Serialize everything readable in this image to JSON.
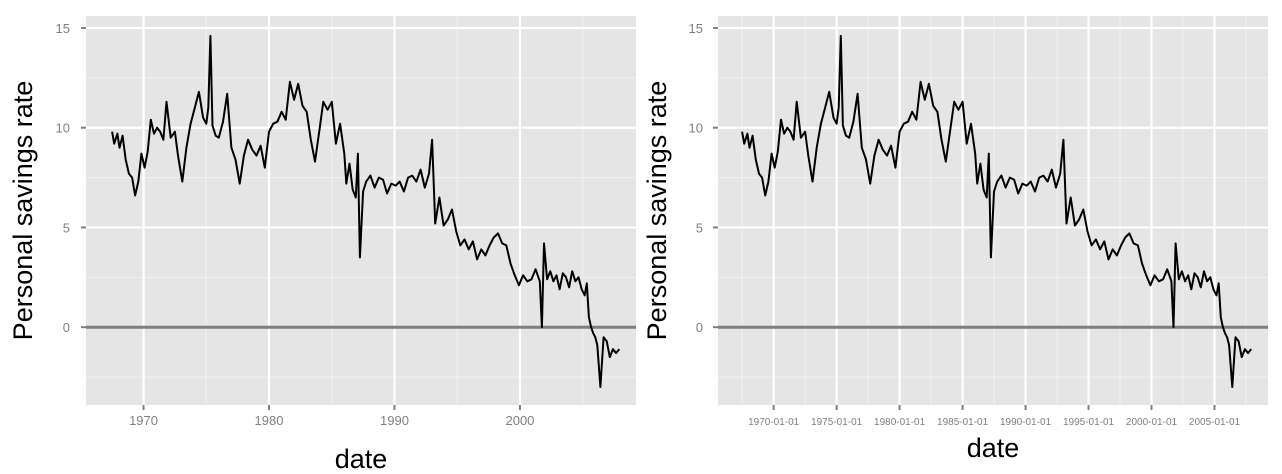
{
  "chart_data": [
    {
      "type": "line",
      "xlabel": "date",
      "ylabel": "Personal savings rate",
      "ylim": [
        -3.9,
        15.6
      ],
      "xlim": [
        "1965-06-01",
        "2009-04-01"
      ],
      "grid": true,
      "reference_line": {
        "y": 0
      },
      "y_ticks": [
        0,
        5,
        10,
        15
      ],
      "y_tick_labels": [
        "0",
        "5",
        "10",
        "15"
      ],
      "x_ticks": [
        "1970-01-01",
        "1980-01-01",
        "1990-01-01",
        "2000-01-01"
      ],
      "x_tick_labels": [
        "1970",
        "1980",
        "1990",
        "2000"
      ],
      "series": [
        {
          "x": [
            "1967-07-01",
            "1967-09-01",
            "1967-12-01",
            "1968-02-01",
            "1968-05-01",
            "1968-08-01",
            "1968-11-01",
            "1969-02-01",
            "1969-05-01",
            "1969-08-01",
            "1969-11-01",
            "1970-02-01",
            "1970-05-01",
            "1970-08-01",
            "1970-11-01",
            "1971-02-01",
            "1971-05-01",
            "1971-08-01",
            "1971-11-01",
            "1972-03-01",
            "1972-07-01",
            "1972-10-01",
            "1973-02-01",
            "1973-06-01",
            "1973-10-01",
            "1974-02-01",
            "1974-06-01",
            "1974-10-01",
            "1975-01-01",
            "1975-03-01",
            "1975-05-01",
            "1975-07-01",
            "1975-10-01",
            "1976-01-01",
            "1976-05-01",
            "1976-09-01",
            "1977-01-01",
            "1977-05-01",
            "1977-09-01",
            "1978-01-01",
            "1978-05-01",
            "1978-09-01",
            "1979-01-01",
            "1979-05-01",
            "1979-09-01",
            "1980-01-01",
            "1980-05-01",
            "1980-09-01",
            "1981-01-01",
            "1981-05-01",
            "1981-09-01",
            "1982-01-01",
            "1982-05-01",
            "1982-09-01",
            "1983-01-01",
            "1983-05-01",
            "1983-09-01",
            "1984-01-01",
            "1984-05-01",
            "1984-09-01",
            "1985-01-01",
            "1985-05-01",
            "1985-09-01",
            "1986-01-01",
            "1986-03-01",
            "1986-06-01",
            "1986-09-01",
            "1986-12-01",
            "1987-02-01",
            "1987-04-01",
            "1987-07-01",
            "1987-10-01",
            "1988-02-01",
            "1988-06-01",
            "1988-10-01",
            "1989-02-01",
            "1989-06-01",
            "1989-10-01",
            "1990-02-01",
            "1990-06-01",
            "1990-10-01",
            "1991-02-01",
            "1991-06-01",
            "1991-10-01",
            "1992-02-01",
            "1992-06-01",
            "1992-10-01",
            "1993-01-01",
            "1993-04-01",
            "1993-08-01",
            "1993-12-01",
            "1994-04-01",
            "1994-08-01",
            "1994-12-01",
            "1995-04-01",
            "1995-08-01",
            "1995-12-01",
            "1996-04-01",
            "1996-08-01",
            "1996-12-01",
            "1997-04-01",
            "1997-08-01",
            "1997-12-01",
            "1998-04-01",
            "1998-08-01",
            "1998-12-01",
            "1999-04-01",
            "1999-08-01",
            "1999-12-01",
            "2000-04-01",
            "2000-08-01",
            "2000-12-01",
            "2001-04-01",
            "2001-08-01",
            "2001-10-01",
            "2001-12-01",
            "2002-03-01",
            "2002-06-01",
            "2002-09-01",
            "2002-12-01",
            "2003-03-01",
            "2003-06-01",
            "2003-09-01",
            "2003-12-01",
            "2004-03-01",
            "2004-06-01",
            "2004-09-01",
            "2004-12-01",
            "2005-03-01",
            "2005-05-01",
            "2005-07-01",
            "2005-09-01",
            "2005-11-01",
            "2006-01-01",
            "2006-03-01",
            "2006-06-01",
            "2006-09-01",
            "2006-12-01",
            "2007-03-01",
            "2007-06-01",
            "2007-09-01",
            "2007-12-01"
          ],
          "values": [
            9.8,
            9.2,
            9.7,
            9.0,
            9.6,
            8.4,
            7.7,
            7.5,
            6.6,
            7.3,
            8.7,
            8.0,
            8.8,
            10.4,
            9.7,
            10.0,
            9.8,
            9.4,
            11.3,
            9.5,
            9.8,
            8.6,
            7.3,
            9.0,
            10.2,
            11.0,
            11.8,
            10.5,
            10.2,
            11.0,
            14.6,
            10.1,
            9.6,
            9.5,
            10.3,
            11.7,
            9.0,
            8.4,
            7.2,
            8.6,
            9.4,
            8.9,
            8.6,
            9.1,
            8.0,
            9.8,
            10.2,
            10.3,
            10.8,
            10.4,
            12.3,
            11.4,
            12.2,
            11.1,
            10.8,
            9.4,
            8.3,
            9.8,
            11.3,
            10.9,
            11.3,
            9.2,
            10.2,
            8.7,
            7.2,
            8.2,
            6.9,
            6.5,
            8.7,
            3.5,
            6.8,
            7.3,
            7.6,
            7.0,
            7.5,
            7.4,
            6.7,
            7.2,
            7.1,
            7.3,
            6.8,
            7.5,
            7.6,
            7.3,
            7.9,
            7.0,
            7.7,
            9.4,
            5.2,
            6.5,
            5.1,
            5.4,
            5.9,
            4.8,
            4.1,
            4.4,
            3.9,
            4.3,
            3.4,
            3.9,
            3.6,
            4.1,
            4.5,
            4.7,
            4.2,
            4.1,
            3.2,
            2.6,
            2.1,
            2.6,
            2.3,
            2.4,
            2.9,
            2.3,
            0.0,
            4.2,
            2.4,
            2.8,
            2.3,
            2.6,
            1.9,
            2.7,
            2.5,
            2.0,
            2.8,
            2.3,
            2.5,
            1.9,
            1.6,
            2.2,
            0.5,
            0.0,
            -0.3,
            -0.5,
            -0.9,
            -3.0,
            -0.5,
            -0.7,
            -1.5,
            -1.1,
            -1.3,
            -1.1
          ]
        }
      ]
    },
    {
      "type": "line",
      "xlabel": "date",
      "ylabel": "Personal savings rate",
      "ylim": [
        -3.9,
        15.6
      ],
      "xlim": [
        "1965-08-01",
        "2009-04-01"
      ],
      "grid": true,
      "reference_line": {
        "y": 0
      },
      "y_ticks": [
        0,
        5,
        10,
        15
      ],
      "y_tick_labels": [
        "0",
        "5",
        "10",
        "15"
      ],
      "x_ticks": [
        "1970-01-01",
        "1975-01-01",
        "1980-01-01",
        "1985-01-01",
        "1990-01-01",
        "1995-01-01",
        "2000-01-01",
        "2005-01-01"
      ],
      "x_tick_labels": [
        "1970-01-01",
        "1975-01-01",
        "1980-01-01",
        "1985-01-01",
        "1990-01-01",
        "1995-01-01",
        "2000-01-01",
        "2005-01-01"
      ],
      "series": [
        {
          "x": [
            "1967-07-01",
            "1967-09-01",
            "1967-12-01",
            "1968-02-01",
            "1968-05-01",
            "1968-08-01",
            "1968-11-01",
            "1969-02-01",
            "1969-05-01",
            "1969-08-01",
            "1969-11-01",
            "1970-02-01",
            "1970-05-01",
            "1970-08-01",
            "1970-11-01",
            "1971-02-01",
            "1971-05-01",
            "1971-08-01",
            "1971-11-01",
            "1972-03-01",
            "1972-07-01",
            "1972-10-01",
            "1973-02-01",
            "1973-06-01",
            "1973-10-01",
            "1974-02-01",
            "1974-06-01",
            "1974-10-01",
            "1975-01-01",
            "1975-03-01",
            "1975-05-01",
            "1975-07-01",
            "1975-10-01",
            "1976-01-01",
            "1976-05-01",
            "1976-09-01",
            "1977-01-01",
            "1977-05-01",
            "1977-09-01",
            "1978-01-01",
            "1978-05-01",
            "1978-09-01",
            "1979-01-01",
            "1979-05-01",
            "1979-09-01",
            "1980-01-01",
            "1980-05-01",
            "1980-09-01",
            "1981-01-01",
            "1981-05-01",
            "1981-09-01",
            "1982-01-01",
            "1982-05-01",
            "1982-09-01",
            "1983-01-01",
            "1983-05-01",
            "1983-09-01",
            "1984-01-01",
            "1984-05-01",
            "1984-09-01",
            "1985-01-01",
            "1985-05-01",
            "1985-09-01",
            "1986-01-01",
            "1986-03-01",
            "1986-06-01",
            "1986-09-01",
            "1986-12-01",
            "1987-02-01",
            "1987-04-01",
            "1987-07-01",
            "1987-10-01",
            "1988-02-01",
            "1988-06-01",
            "1988-10-01",
            "1989-02-01",
            "1989-06-01",
            "1989-10-01",
            "1990-02-01",
            "1990-06-01",
            "1990-10-01",
            "1991-02-01",
            "1991-06-01",
            "1991-10-01",
            "1992-02-01",
            "1992-06-01",
            "1992-10-01",
            "1993-01-01",
            "1993-04-01",
            "1993-08-01",
            "1993-12-01",
            "1994-04-01",
            "1994-08-01",
            "1994-12-01",
            "1995-04-01",
            "1995-08-01",
            "1995-12-01",
            "1996-04-01",
            "1996-08-01",
            "1996-12-01",
            "1997-04-01",
            "1997-08-01",
            "1997-12-01",
            "1998-04-01",
            "1998-08-01",
            "1998-12-01",
            "1999-04-01",
            "1999-08-01",
            "1999-12-01",
            "2000-04-01",
            "2000-08-01",
            "2000-12-01",
            "2001-04-01",
            "2001-08-01",
            "2001-10-01",
            "2001-12-01",
            "2002-03-01",
            "2002-06-01",
            "2002-09-01",
            "2002-12-01",
            "2003-03-01",
            "2003-06-01",
            "2003-09-01",
            "2003-12-01",
            "2004-03-01",
            "2004-06-01",
            "2004-09-01",
            "2004-12-01",
            "2005-03-01",
            "2005-05-01",
            "2005-07-01",
            "2005-09-01",
            "2005-11-01",
            "2006-01-01",
            "2006-03-01",
            "2006-06-01",
            "2006-09-01",
            "2006-12-01",
            "2007-03-01",
            "2007-06-01",
            "2007-09-01",
            "2007-12-01"
          ],
          "values": [
            9.8,
            9.2,
            9.7,
            9.0,
            9.6,
            8.4,
            7.7,
            7.5,
            6.6,
            7.3,
            8.7,
            8.0,
            8.8,
            10.4,
            9.7,
            10.0,
            9.8,
            9.4,
            11.3,
            9.5,
            9.8,
            8.6,
            7.3,
            9.0,
            10.2,
            11.0,
            11.8,
            10.5,
            10.2,
            11.0,
            14.6,
            10.1,
            9.6,
            9.5,
            10.3,
            11.7,
            9.0,
            8.4,
            7.2,
            8.6,
            9.4,
            8.9,
            8.6,
            9.1,
            8.0,
            9.8,
            10.2,
            10.3,
            10.8,
            10.4,
            12.3,
            11.4,
            12.2,
            11.1,
            10.8,
            9.4,
            8.3,
            9.8,
            11.3,
            10.9,
            11.3,
            9.2,
            10.2,
            8.7,
            7.2,
            8.2,
            6.9,
            6.5,
            8.7,
            3.5,
            6.8,
            7.3,
            7.6,
            7.0,
            7.5,
            7.4,
            6.7,
            7.2,
            7.1,
            7.3,
            6.8,
            7.5,
            7.6,
            7.3,
            7.9,
            7.0,
            7.7,
            9.4,
            5.2,
            6.5,
            5.1,
            5.4,
            5.9,
            4.8,
            4.1,
            4.4,
            3.9,
            4.3,
            3.4,
            3.9,
            3.6,
            4.1,
            4.5,
            4.7,
            4.2,
            4.1,
            3.2,
            2.6,
            2.1,
            2.6,
            2.3,
            2.4,
            2.9,
            2.3,
            0.0,
            4.2,
            2.4,
            2.8,
            2.3,
            2.6,
            1.9,
            2.7,
            2.5,
            2.0,
            2.8,
            2.3,
            2.5,
            1.9,
            1.6,
            2.2,
            0.5,
            0.0,
            -0.3,
            -0.5,
            -0.9,
            -3.0,
            -0.5,
            -0.7,
            -1.5,
            -1.1,
            -1.3,
            -1.1
          ]
        }
      ]
    }
  ]
}
